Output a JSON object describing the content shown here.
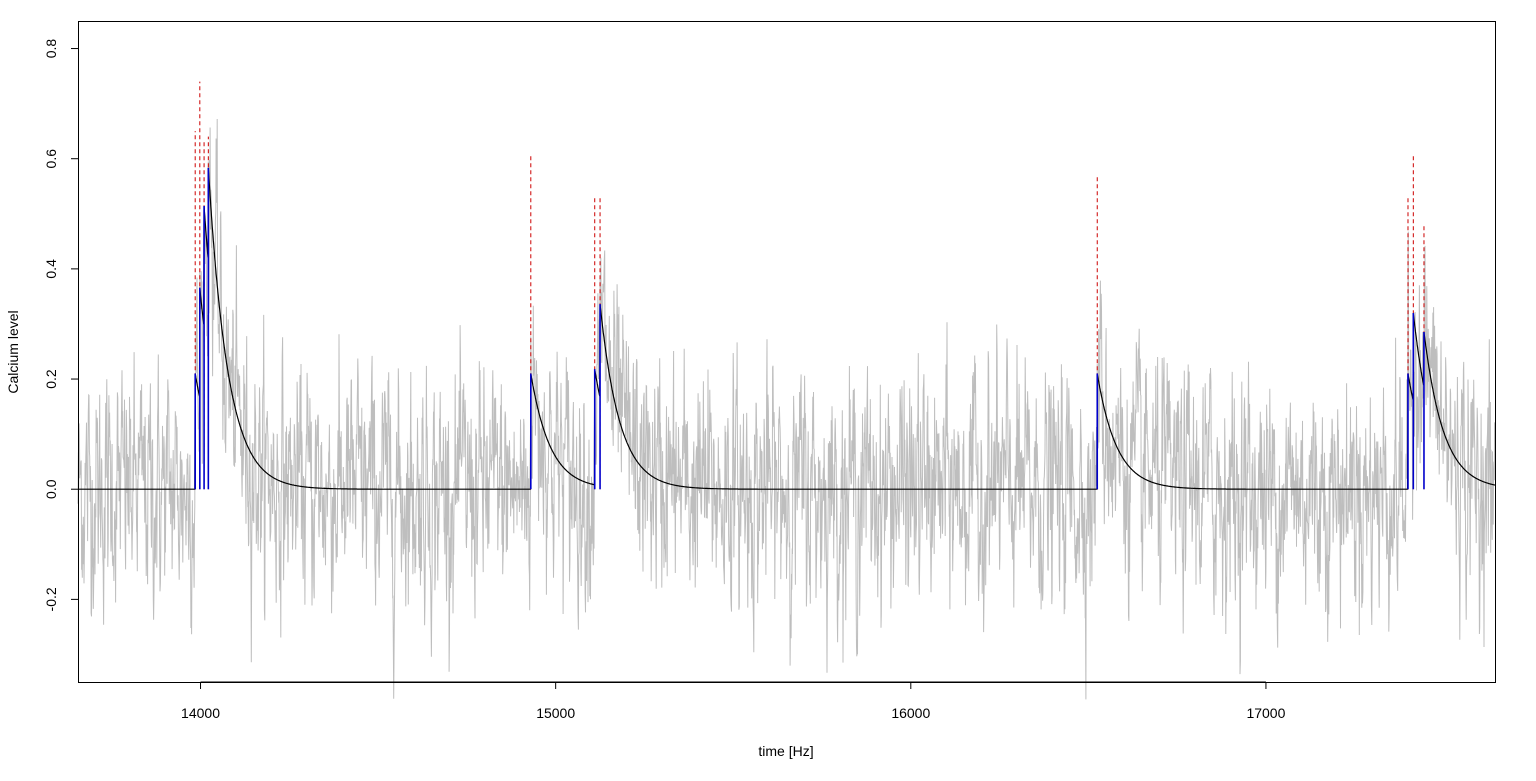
{
  "chart_data": {
    "type": "line",
    "title": "",
    "xlabel": "time [Hz]",
    "ylabel": "Calcium level",
    "xlim": [
      13655,
      17645
    ],
    "ylim": [
      -0.35,
      0.85
    ],
    "grid": false,
    "legend": "none",
    "x_ticks": [
      {
        "value": 14000,
        "label": "14000"
      },
      {
        "value": 15000,
        "label": "15000"
      },
      {
        "value": 16000,
        "label": "16000"
      },
      {
        "value": 17000,
        "label": "17000"
      }
    ],
    "y_ticks": [
      {
        "value": -0.2,
        "label": "-0.2"
      },
      {
        "value": 0.0,
        "label": "0.0"
      },
      {
        "value": 0.2,
        "label": "0.2"
      },
      {
        "value": 0.4,
        "label": "0.4"
      },
      {
        "value": 0.6,
        "label": "0.6"
      },
      {
        "value": 0.8,
        "label": "0.8"
      }
    ],
    "colors": {
      "raw_signal": "#bebebe",
      "fitted_calcium": "#000000",
      "spike_markers": "#cc0000",
      "spike_amplitudes": "#0000cc"
    },
    "series": [
      {
        "kind": "raw-noisy-trace",
        "sample_count": 3990,
        "y_range_approx": [
          -0.3,
          0.6
        ]
      },
      {
        "kind": "fitted-calcium-decay",
        "decay_tau_samples": 55,
        "events": [
          {
            "x": 13985,
            "amplitude": 0.21
          },
          {
            "x": 13998,
            "amplitude": 0.2
          },
          {
            "x": 14010,
            "amplitude": 0.22
          },
          {
            "x": 14022,
            "amplitude": 0.17
          },
          {
            "x": 14930,
            "amplitude": 0.21
          },
          {
            "x": 15110,
            "amplitude": 0.21
          },
          {
            "x": 15125,
            "amplitude": 0.17
          },
          {
            "x": 16525,
            "amplitude": 0.21
          },
          {
            "x": 17400,
            "amplitude": 0.21
          },
          {
            "x": 17415,
            "amplitude": 0.16
          },
          {
            "x": 17445,
            "amplitude": 0.1
          }
        ]
      },
      {
        "kind": "spike-markers",
        "points": [
          {
            "x": 13985,
            "y": 0.65
          },
          {
            "x": 13998,
            "y": 0.74
          },
          {
            "x": 14010,
            "y": 0.63
          },
          {
            "x": 14022,
            "y": 0.64
          },
          {
            "x": 14930,
            "y": 0.61
          },
          {
            "x": 15110,
            "y": 0.53
          },
          {
            "x": 15125,
            "y": 0.53
          },
          {
            "x": 16525,
            "y": 0.57
          },
          {
            "x": 17400,
            "y": 0.53
          },
          {
            "x": 17415,
            "y": 0.61
          },
          {
            "x": 17445,
            "y": 0.48
          }
        ]
      }
    ]
  }
}
